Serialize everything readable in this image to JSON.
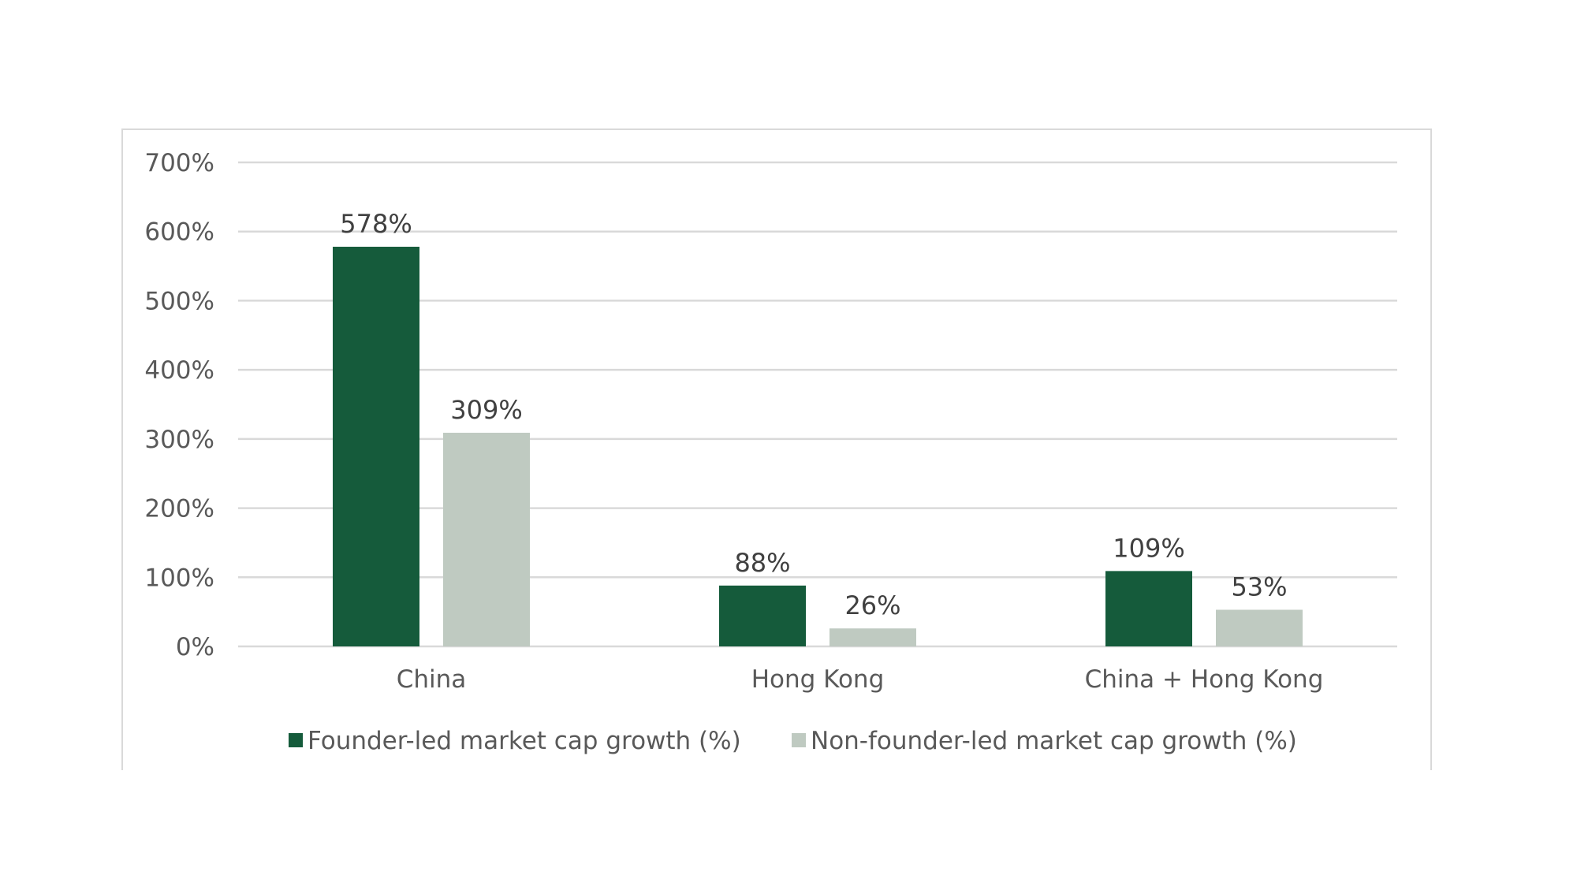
{
  "chart_data": {
    "type": "bar",
    "title": "",
    "xlabel": "",
    "ylabel": "",
    "categories": [
      "China",
      "Hong Kong",
      "China + Hong Kong"
    ],
    "series": [
      {
        "name": "Founder-led market cap growth (%)",
        "values": [
          578,
          88,
          109
        ],
        "labels": [
          "578%",
          "88%",
          "109%"
        ],
        "color": "#155b3b"
      },
      {
        "name": "Non-founder-led market cap growth (%)",
        "values": [
          309,
          26,
          53
        ],
        "labels": [
          "309%",
          "26%",
          "53%"
        ],
        "color": "#bfcac1"
      }
    ],
    "ylim": [
      0,
      700
    ],
    "yticks": [
      0,
      100,
      200,
      300,
      400,
      500,
      600,
      700
    ],
    "ytick_labels": [
      "0%",
      "100%",
      "200%",
      "300%",
      "400%",
      "500%",
      "600%",
      "700%"
    ],
    "grid": true,
    "legend_position": "bottom",
    "gridline_color": "#d9d9d9",
    "frame_color": "#d9d9d9"
  }
}
